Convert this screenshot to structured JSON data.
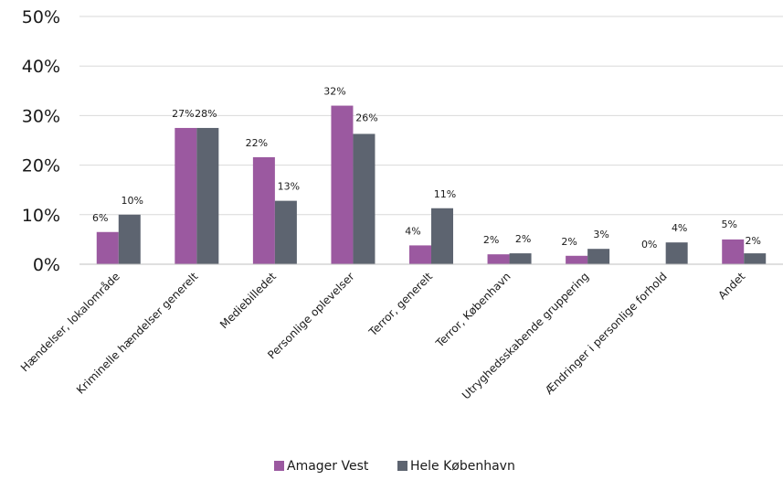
{
  "chart_data": {
    "type": "bar",
    "categories": [
      "Hændelser, lokalområde",
      "Kriminelle hændelser generelt",
      "Mediebilledet",
      "Personlige oplevelser",
      "Terror, generelt",
      "Terror, København",
      "Utryghedsskabende gruppering",
      "Ændringer i personlige forhold",
      "Andet"
    ],
    "series": [
      {
        "name": "Amager Vest",
        "color": "#9b59a0",
        "values": [
          6.5,
          27.5,
          21.6,
          32.0,
          3.8,
          2.0,
          1.7,
          0.0,
          5.0
        ],
        "labels": [
          "6%",
          "27%",
          "22%",
          "32%",
          "4%",
          "2%",
          "2%",
          "0%",
          "5%"
        ]
      },
      {
        "name": "Hele København",
        "color": "#5d6470",
        "values": [
          10.0,
          27.5,
          12.8,
          26.3,
          11.3,
          2.2,
          3.1,
          4.4,
          2.2
        ],
        "labels": [
          "10%",
          "28%",
          "13%",
          "26%",
          "11%",
          "2%",
          "3%",
          "4%",
          "2%"
        ]
      }
    ],
    "yticks": [
      "0%",
      "10%",
      "20%",
      "30%",
      "40%",
      "50%"
    ],
    "ylim": [
      0,
      50
    ],
    "grid": true,
    "legend_position": "bottom"
  }
}
